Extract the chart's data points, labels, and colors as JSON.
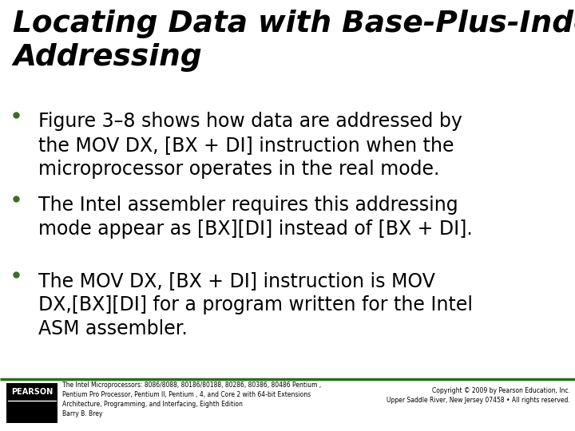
{
  "title_line1": "Locating Data with Base-Plus-Index",
  "title_line2": "Addressing",
  "bullet1": "Figure 3–8 shows how data are addressed by\nthe MOV DX, [BX + DI] instruction when the\nmicroprocessor operates in the real mode.",
  "bullet2": "The Intel assembler requires this addressing\nmode appear as [BX][DI] instead of [BX + DI].",
  "bullet3": "The MOV DX, [BX + DI] instruction is MOV\nDX,[BX][DI] for a program written for the Intel\nASM assembler.",
  "footer_left_line1": "The Intel Microprocessors: 8086/8088, 80186/80188, 80286, 80386, 80486 Pentium ,",
  "footer_left_line2": "Pentium Pro Processor, Pentium II, Pentium , 4, and Core 2 with 64-bit Extensions",
  "footer_left_line3": "Architecture, Programming, and Interfacing, Eighth Edition",
  "footer_left_line4": "Barry B. Brey",
  "footer_right_line1": "Copyright © 2009 by Pearson Education, Inc.",
  "footer_right_line2": "Upper Saddle River, New Jersey 07458 • All rights reserved.",
  "background_color": "#ffffff",
  "title_color": "#000000",
  "body_color": "#000000",
  "footer_color": "#000000",
  "separator_color": "#2e6b1e",
  "bullet_color": "#3a6e28",
  "pearson_box_color": "#000000",
  "pearson_text_color": "#ffffff",
  "title_fontsize": 27,
  "body_fontsize": 17,
  "footer_fontsize": 5.5
}
